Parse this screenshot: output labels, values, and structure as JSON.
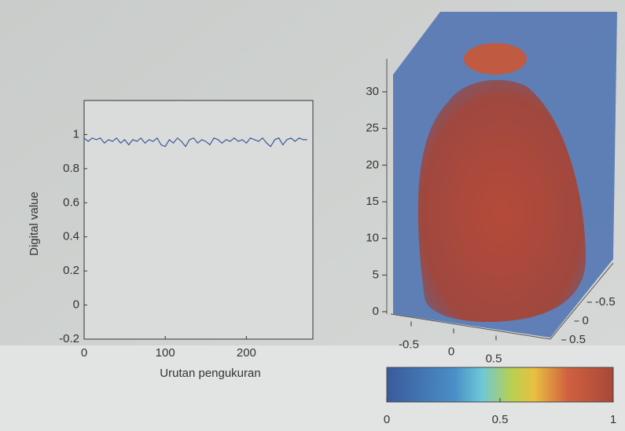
{
  "chart_data": [
    {
      "type": "line",
      "ylabel": "Digital value",
      "xlabel": "Urutan pengukuran",
      "x": [
        0,
        5,
        10,
        15,
        20,
        25,
        30,
        35,
        40,
        45,
        50,
        55,
        60,
        65,
        70,
        75,
        80,
        85,
        90,
        95,
        100,
        105,
        110,
        115,
        120,
        125,
        130,
        135,
        140,
        145,
        150,
        155,
        160,
        165,
        170,
        175,
        180,
        185,
        190,
        195,
        200,
        205,
        210,
        215,
        220,
        225,
        230,
        235,
        240,
        245,
        250,
        255,
        260,
        265,
        270,
        275
      ],
      "values": [
        0.98,
        0.96,
        0.98,
        0.97,
        0.98,
        0.95,
        0.97,
        0.96,
        0.98,
        0.95,
        0.97,
        0.94,
        0.97,
        0.96,
        0.98,
        0.95,
        0.97,
        0.96,
        0.98,
        0.94,
        0.93,
        0.97,
        0.95,
        0.98,
        0.96,
        0.93,
        0.97,
        0.98,
        0.95,
        0.97,
        0.96,
        0.94,
        0.98,
        0.97,
        0.95,
        0.97,
        0.96,
        0.98,
        0.96,
        0.97,
        0.95,
        0.98,
        0.97,
        0.96,
        0.98,
        0.95,
        0.93,
        0.97,
        0.98,
        0.94,
        0.97,
        0.98,
        0.96,
        0.98,
        0.97,
        0.97
      ],
      "color": "#3b5a9a",
      "xlim": [
        0,
        282
      ],
      "xticks": [
        0,
        100,
        200
      ],
      "ylim": [
        -0.2,
        1.2
      ],
      "yticks": [
        -0.2,
        0,
        0.2,
        0.4,
        0.6,
        0.8,
        1
      ]
    },
    {
      "type": "volume",
      "zlim": [
        0,
        34.5
      ],
      "zticks": [
        0,
        5,
        10,
        15,
        20,
        25,
        30
      ],
      "xlim": [
        -0.75,
        0.75
      ],
      "xticks": [
        -0.5,
        0,
        0.5
      ],
      "ylim": [
        -0.75,
        0.75
      ],
      "yticks": [
        -0.5,
        0,
        0.5
      ],
      "colorbar": {
        "lim": [
          0,
          1
        ],
        "ticks": [
          0,
          0.5,
          1
        ]
      }
    }
  ]
}
